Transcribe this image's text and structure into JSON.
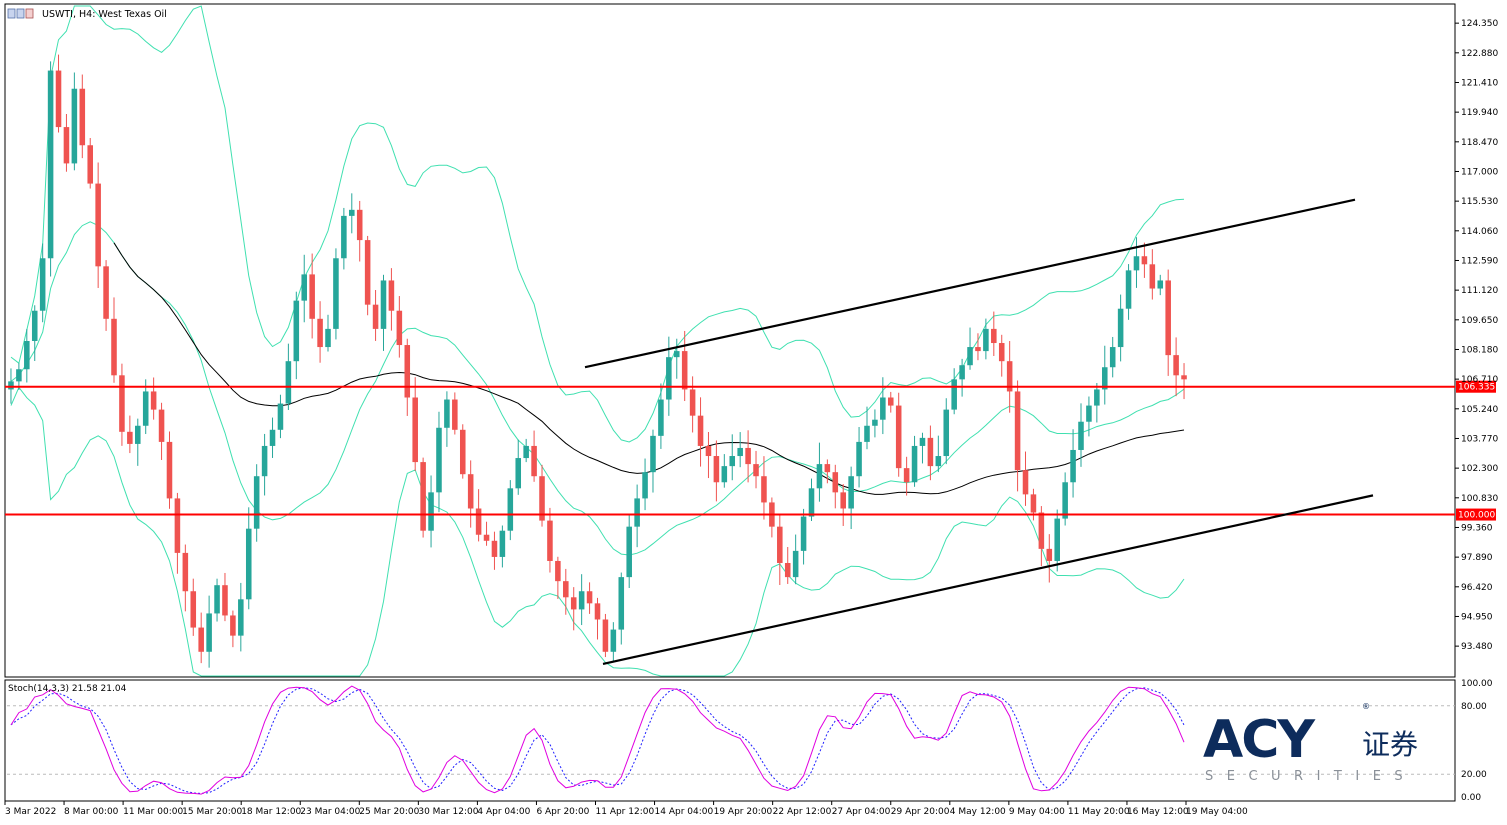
{
  "chart_data": [
    {
      "type": "candlestick",
      "title": "USWTI, H4:  West Texas Oil",
      "y_range": [
        92.0,
        125.2
      ],
      "y_ticks": [
        "124.350",
        "122.880",
        "121.410",
        "119.940",
        "118.470",
        "117.000",
        "115.530",
        "114.060",
        "112.590",
        "111.120",
        "109.650",
        "108.180",
        "106.710",
        "105.240",
        "103.770",
        "102.300",
        "100.830",
        "99.360",
        "97.890",
        "96.420",
        "94.950",
        "93.480"
      ],
      "x_ticks": [
        "3 Mar 2022",
        "8 Mar 00:00",
        "11 Mar 00:00",
        "15 Mar 20:00",
        "18 Mar 12:00",
        "23 Mar 04:00",
        "25 Mar 20:00",
        "30 Mar 12:00",
        "4 Apr 04:00",
        "6 Apr 20:00",
        "11 Apr 12:00",
        "14 Apr 04:00",
        "19 Apr 20:00",
        "22 Apr 12:00",
        "27 Apr 04:00",
        "29 Apr 20:00",
        "4 May 12:00",
        "9 May 04:00",
        "11 May 20:00",
        "16 May 12:00",
        "19 May 04:00"
      ],
      "horizontal_levels": [
        {
          "label": "106.335",
          "value": 106.335,
          "color": "#ff0000"
        },
        {
          "label": "100.000",
          "value": 100.0,
          "color": "#ff0000"
        }
      ],
      "trendlines": [
        {
          "name": "channel-top",
          "from": [
            0.0,
            107.3
          ],
          "to": [
            1.0,
            115.6
          ]
        },
        {
          "name": "channel-bottom",
          "from": [
            0.0,
            92.6
          ],
          "to": [
            1.0,
            100.95
          ]
        }
      ],
      "closes": [
        106.6,
        107.2,
        108.6,
        110.1,
        112.7,
        122.0,
        119.2,
        117.4,
        121.1,
        118.3,
        116.4,
        112.3,
        109.7,
        106.9,
        104.1,
        103.5,
        104.4,
        106.1,
        105.2,
        103.6,
        100.8,
        98.1,
        96.2,
        94.4,
        93.2,
        95.1,
        96.5,
        95.0,
        94.0,
        95.8,
        99.3,
        101.9,
        103.4,
        104.2,
        105.5,
        107.6,
        110.6,
        111.9,
        109.7,
        108.3,
        109.2,
        112.7,
        114.8,
        115.1,
        113.6,
        110.4,
        109.2,
        111.6,
        110.1,
        108.4,
        105.8,
        102.6,
        99.2,
        101.1,
        104.3,
        105.7,
        104.2,
        102.0,
        100.3,
        99.0,
        98.7,
        97.9,
        99.2,
        101.3,
        102.8,
        103.4,
        101.9,
        99.7,
        97.7,
        96.7,
        95.9,
        95.3,
        96.2,
        95.6,
        94.8,
        93.2,
        94.3,
        96.9,
        99.4,
        100.8,
        102.1,
        103.9,
        105.7,
        107.8,
        108.1,
        106.2,
        104.9,
        103.4,
        102.9,
        101.6,
        102.4,
        102.9,
        103.3,
        102.5,
        101.9,
        100.6,
        99.4,
        97.6,
        96.9,
        98.2,
        99.9,
        101.3,
        102.5,
        102.1,
        101.1,
        100.3,
        101.9,
        103.6,
        104.4,
        104.7,
        105.8,
        105.4,
        102.3,
        101.6,
        103.4,
        103.8,
        102.4,
        102.9,
        105.2,
        106.7,
        107.4,
        108.3,
        108.1,
        109.2,
        108.5,
        107.6,
        106.1,
        102.2,
        101.0,
        100.1,
        98.3,
        97.7,
        99.8,
        101.6,
        103.2,
        104.6,
        105.4,
        106.2,
        107.3,
        108.3,
        110.2,
        112.1,
        112.8,
        112.4,
        111.2,
        111.6,
        107.9,
        106.9,
        106.7
      ]
    },
    {
      "type": "line",
      "title": "Stoch(14,3,3) 21.58 21.04",
      "y_range": [
        0,
        100
      ],
      "y_ticks": [
        "100.00",
        "80.00",
        "20.00",
        "0.00"
      ],
      "series": [
        {
          "name": "main",
          "color": "#e000e0"
        },
        {
          "name": "signal",
          "color": "#2020ff"
        }
      ]
    }
  ],
  "logo": {
    "mark": "ACY",
    "cn": "证券",
    "sub": "SECURITIES",
    "reg": "®"
  }
}
